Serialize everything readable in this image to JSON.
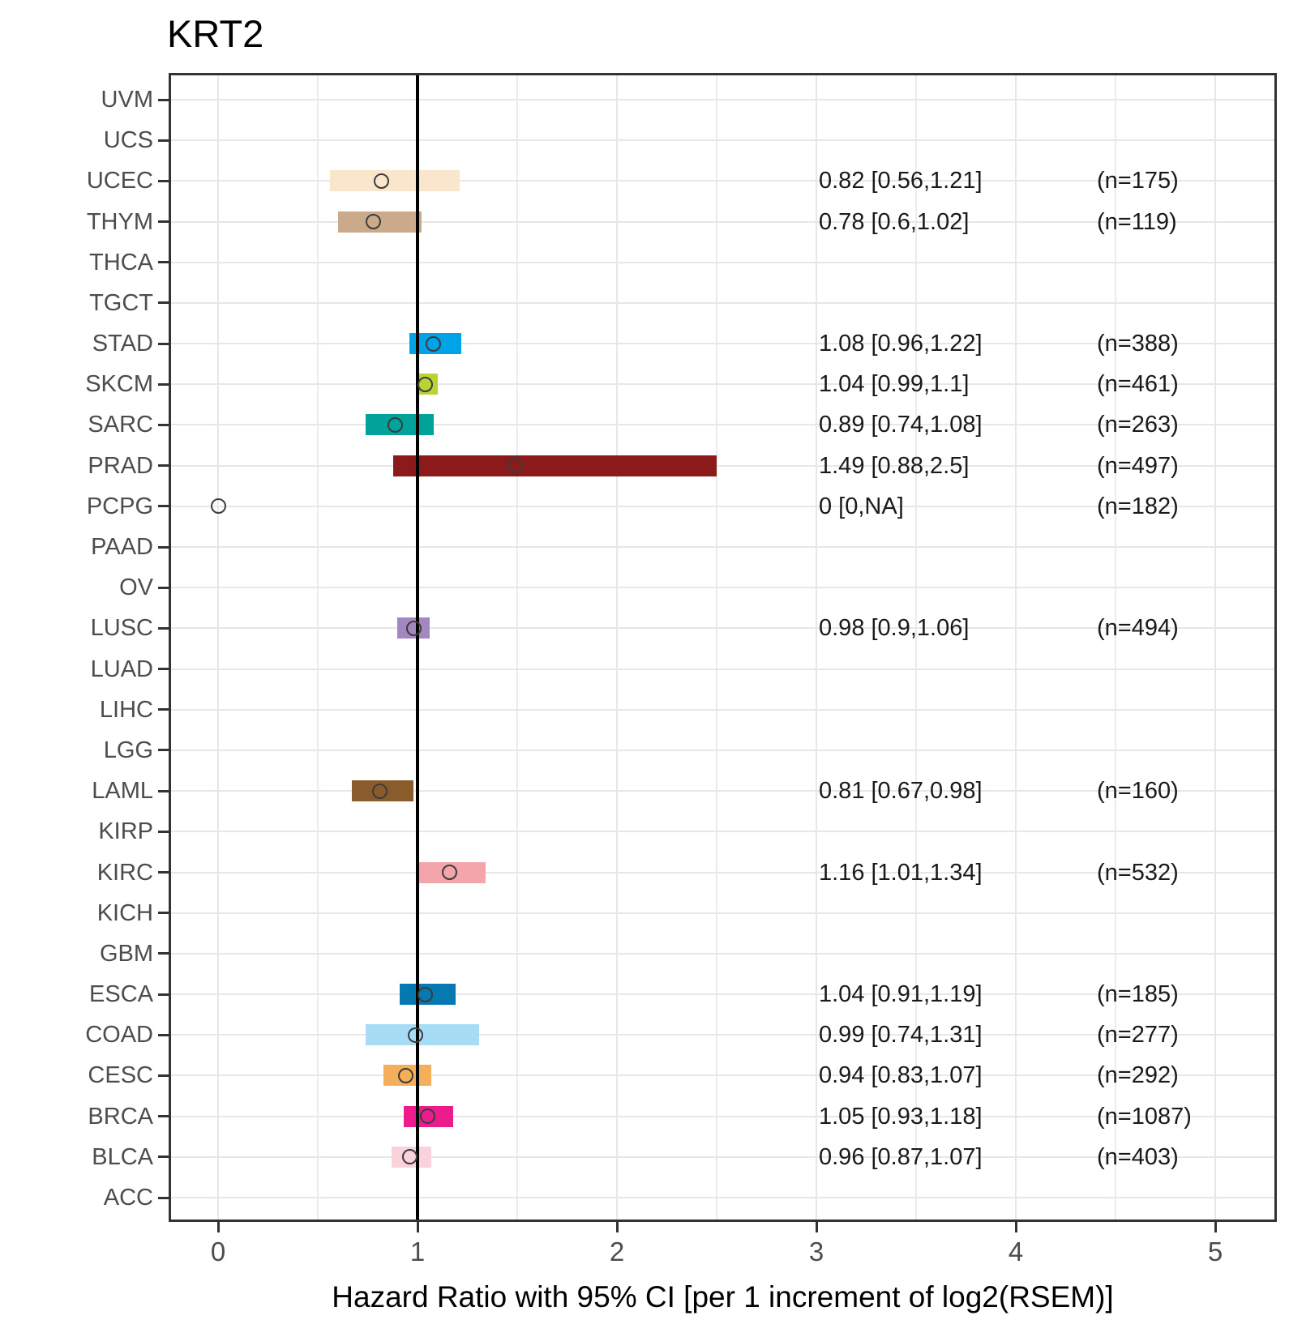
{
  "chart_data": {
    "type": "forest",
    "title": "KRT2",
    "xlabel": "Hazard Ratio with 95% CI [per 1 increment of log2(RSEM)]",
    "ylabel": "",
    "xlim": [
      -0.25,
      5.31
    ],
    "x_ticks": [
      0,
      1,
      2,
      3,
      4,
      5
    ],
    "x_tick_labels": [
      "0",
      "1",
      "2",
      "3",
      "4",
      "5"
    ],
    "x_minor_ticks": [
      0.5,
      1.5,
      2.5,
      3.5,
      4.5
    ],
    "reference_line_x": 1,
    "reference_line_color": "#000000",
    "grid": "on",
    "grid_color": "#E7E7E7",
    "point_outline_color": "#3C3C3C",
    "axis_text_color": "#4D4D4D",
    "rows": [
      {
        "label": "UVM",
        "hr": null,
        "lo": null,
        "hi": null,
        "n": null,
        "hr_text": null,
        "n_text": null,
        "color": null
      },
      {
        "label": "UCS",
        "hr": null,
        "lo": null,
        "hi": null,
        "n": null,
        "hr_text": null,
        "n_text": null,
        "color": null
      },
      {
        "label": "UCEC",
        "hr": 0.82,
        "lo": 0.56,
        "hi": 1.21,
        "n": 175,
        "hr_text": "0.82 [0.56,1.21]",
        "n_text": "(n=175)",
        "color": "#FAE6CC"
      },
      {
        "label": "THYM",
        "hr": 0.78,
        "lo": 0.6,
        "hi": 1.02,
        "n": 119,
        "hr_text": "0.78 [0.6,1.02]",
        "n_text": "(n=119)",
        "color": "#CBA98B"
      },
      {
        "label": "THCA",
        "hr": null,
        "lo": null,
        "hi": null,
        "n": null,
        "hr_text": null,
        "n_text": null,
        "color": null
      },
      {
        "label": "TGCT",
        "hr": null,
        "lo": null,
        "hi": null,
        "n": null,
        "hr_text": null,
        "n_text": null,
        "color": null
      },
      {
        "label": "STAD",
        "hr": 1.08,
        "lo": 0.96,
        "hi": 1.22,
        "n": 388,
        "hr_text": "1.08 [0.96,1.22]",
        "n_text": "(n=388)",
        "color": "#00A2E8"
      },
      {
        "label": "SKCM",
        "hr": 1.04,
        "lo": 0.99,
        "hi": 1.1,
        "n": 461,
        "hr_text": "1.04 [0.99,1.1]",
        "n_text": "(n=461)",
        "color": "#B8D433"
      },
      {
        "label": "SARC",
        "hr": 0.89,
        "lo": 0.74,
        "hi": 1.08,
        "n": 263,
        "hr_text": "0.89 [0.74,1.08]",
        "n_text": "(n=263)",
        "color": "#00A29A"
      },
      {
        "label": "PRAD",
        "hr": 1.49,
        "lo": 0.88,
        "hi": 2.5,
        "n": 497,
        "hr_text": "1.49 [0.88,2.5]",
        "n_text": "(n=497)",
        "color": "#8B1A1A"
      },
      {
        "label": "PCPG",
        "hr": 0,
        "lo": 0,
        "hi": null,
        "n": 182,
        "hr_text": "0 [0,NA]",
        "n_text": "(n=182)",
        "color": null
      },
      {
        "label": "PAAD",
        "hr": null,
        "lo": null,
        "hi": null,
        "n": null,
        "hr_text": null,
        "n_text": null,
        "color": null
      },
      {
        "label": "OV",
        "hr": null,
        "lo": null,
        "hi": null,
        "n": null,
        "hr_text": null,
        "n_text": null,
        "color": null
      },
      {
        "label": "LUSC",
        "hr": 0.98,
        "lo": 0.9,
        "hi": 1.06,
        "n": 494,
        "hr_text": "0.98 [0.9,1.06]",
        "n_text": "(n=494)",
        "color": "#A288BF"
      },
      {
        "label": "LUAD",
        "hr": null,
        "lo": null,
        "hi": null,
        "n": null,
        "hr_text": null,
        "n_text": null,
        "color": null
      },
      {
        "label": "LIHC",
        "hr": null,
        "lo": null,
        "hi": null,
        "n": null,
        "hr_text": null,
        "n_text": null,
        "color": null
      },
      {
        "label": "LGG",
        "hr": null,
        "lo": null,
        "hi": null,
        "n": null,
        "hr_text": null,
        "n_text": null,
        "color": null
      },
      {
        "label": "LAML",
        "hr": 0.81,
        "lo": 0.67,
        "hi": 0.98,
        "n": 160,
        "hr_text": "0.81 [0.67,0.98]",
        "n_text": "(n=160)",
        "color": "#8A5C2B"
      },
      {
        "label": "KIRP",
        "hr": null,
        "lo": null,
        "hi": null,
        "n": null,
        "hr_text": null,
        "n_text": null,
        "color": null
      },
      {
        "label": "KIRC",
        "hr": 1.16,
        "lo": 1.01,
        "hi": 1.34,
        "n": 532,
        "hr_text": "1.16 [1.01,1.34]",
        "n_text": "(n=532)",
        "color": "#F4A4AB"
      },
      {
        "label": "KICH",
        "hr": null,
        "lo": null,
        "hi": null,
        "n": null,
        "hr_text": null,
        "n_text": null,
        "color": null
      },
      {
        "label": "GBM",
        "hr": null,
        "lo": null,
        "hi": null,
        "n": null,
        "hr_text": null,
        "n_text": null,
        "color": null
      },
      {
        "label": "ESCA",
        "hr": 1.04,
        "lo": 0.91,
        "hi": 1.19,
        "n": 185,
        "hr_text": "1.04 [0.91,1.19]",
        "n_text": "(n=185)",
        "color": "#0779B1"
      },
      {
        "label": "COAD",
        "hr": 0.99,
        "lo": 0.74,
        "hi": 1.31,
        "n": 277,
        "hr_text": "0.99 [0.74,1.31]",
        "n_text": "(n=277)",
        "color": "#A6DCF5"
      },
      {
        "label": "CESC",
        "hr": 0.94,
        "lo": 0.83,
        "hi": 1.07,
        "n": 292,
        "hr_text": "0.94 [0.83,1.07]",
        "n_text": "(n=292)",
        "color": "#F5AF5B"
      },
      {
        "label": "BRCA",
        "hr": 1.05,
        "lo": 0.93,
        "hi": 1.18,
        "n": 1087,
        "hr_text": "1.05 [0.93,1.18]",
        "n_text": "(n=1087)",
        "color": "#EC1C8D"
      },
      {
        "label": "BLCA",
        "hr": 0.96,
        "lo": 0.87,
        "hi": 1.07,
        "n": 403,
        "hr_text": "0.96 [0.87,1.07]",
        "n_text": "(n=403)",
        "color": "#F9D2DB"
      },
      {
        "label": "ACC",
        "hr": null,
        "lo": null,
        "hi": null,
        "n": null,
        "hr_text": null,
        "n_text": null,
        "color": null
      }
    ]
  }
}
